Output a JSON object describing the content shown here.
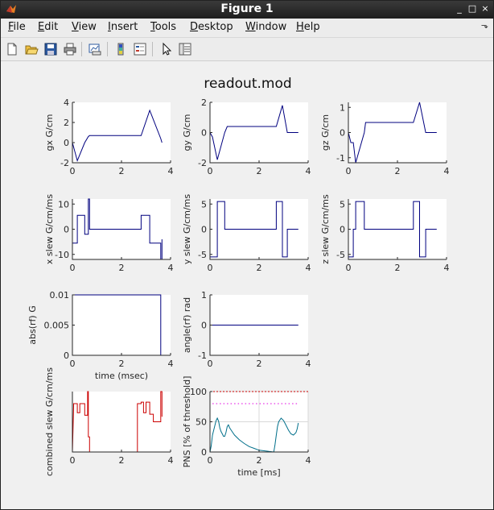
{
  "window": {
    "title": "Figure 1",
    "controls": [
      "_",
      "□",
      "×"
    ]
  },
  "menu": {
    "items": [
      {
        "key": "F",
        "rest": "ile"
      },
      {
        "key": "E",
        "rest": "dit"
      },
      {
        "key": "V",
        "rest": "iew"
      },
      {
        "key": "I",
        "rest": "nsert"
      },
      {
        "key": "T",
        "rest": "ools"
      },
      {
        "key": "D",
        "rest": "esktop"
      },
      {
        "key": "W",
        "rest": "indow"
      },
      {
        "key": "H",
        "rest": "elp"
      }
    ],
    "dock_icon": "dock-arrow-icon"
  },
  "toolbar": {
    "icons": [
      "new-figure-icon",
      "open-file-icon",
      "save-icon",
      "print-icon",
      "link-plot-icon",
      "colorbar-icon",
      "legend-icon",
      "select-arrow-icon",
      "property-inspector-icon"
    ]
  },
  "figure": {
    "title": "readout.mod",
    "colors": {
      "trace": "#00007f",
      "rf": "#00007f",
      "combined": "#cc0000",
      "pns": "#006f8a",
      "threshold": "#e000e0"
    }
  },
  "chart_data": [
    {
      "id": "gx",
      "type": "line",
      "ylabel": "gx G/cm",
      "xlim": [
        0,
        4
      ],
      "ylim": [
        -2,
        4
      ],
      "xticks": [
        "0",
        "2",
        "4"
      ],
      "yticks": [
        "-2",
        "0",
        "2",
        "4"
      ],
      "grid": false,
      "series": [
        {
          "x": [
            0,
            0.2,
            0.5,
            0.65,
            0.7,
            2.8,
            3.15,
            3.6,
            3.65
          ],
          "y": [
            0,
            -1.8,
            0,
            0.6,
            0.7,
            0.7,
            3.2,
            0.4,
            0
          ]
        }
      ]
    },
    {
      "id": "gy",
      "type": "line",
      "ylabel": "gy G/cm",
      "xlim": [
        0,
        4
      ],
      "ylim": [
        -2,
        2
      ],
      "xticks": [
        "0",
        "2",
        "4"
      ],
      "yticks": [
        "-2",
        "0",
        "2"
      ],
      "grid": false,
      "series": [
        {
          "x": [
            0,
            0.1,
            0.3,
            0.6,
            0.7,
            2.7,
            2.95,
            3.15,
            3.6
          ],
          "y": [
            0,
            -0.3,
            -1.8,
            0,
            0.4,
            0.4,
            1.8,
            0,
            0
          ]
        }
      ]
    },
    {
      "id": "gz",
      "type": "line",
      "ylabel": "gz G/cm",
      "xlim": [
        0,
        4
      ],
      "ylim": [
        -1.2,
        1.2
      ],
      "xticks": [
        "0",
        "2",
        "4"
      ],
      "yticks": [
        "-1",
        "0",
        "1"
      ],
      "grid": false,
      "series": [
        {
          "x": [
            0,
            0.1,
            0.2,
            0.3,
            0.65,
            0.7,
            2.65,
            2.9,
            3.15,
            3.6
          ],
          "y": [
            0,
            -0.4,
            -0.4,
            -1.2,
            0,
            0.4,
            0.4,
            1.2,
            0,
            0
          ]
        }
      ]
    },
    {
      "id": "xslew",
      "type": "line",
      "ylabel": "x slew  G/cm/ms",
      "xlim": [
        0,
        4
      ],
      "ylim": [
        -12,
        12
      ],
      "xticks": [
        "0",
        "2",
        "4"
      ],
      "yticks": [
        "-10",
        "0",
        "10"
      ],
      "grid": false,
      "series": [
        {
          "x": [
            0,
            0,
            0.2,
            0.2,
            0.5,
            0.5,
            0.65,
            0.65,
            0.7,
            0.7,
            2.8,
            2.8,
            3.15,
            3.15,
            3.6,
            3.6,
            3.65,
            3.65
          ],
          "y": [
            0,
            -5.5,
            -5.5,
            5.5,
            5.5,
            -2,
            -2,
            12,
            12,
            0,
            0,
            5.5,
            5.5,
            -5.5,
            -5.5,
            -12,
            -12,
            -4
          ]
        }
      ]
    },
    {
      "id": "yslew",
      "type": "line",
      "ylabel": "y slew  G/cm/ms",
      "xlim": [
        0,
        4
      ],
      "ylim": [
        -6,
        6
      ],
      "xticks": [
        "0",
        "2",
        "4"
      ],
      "yticks": [
        "-5",
        "0",
        "5"
      ],
      "grid": false,
      "series": [
        {
          "x": [
            0,
            0,
            0.3,
            0.3,
            0.6,
            0.6,
            2.7,
            2.7,
            2.95,
            2.95,
            3.15,
            3.15,
            3.6
          ],
          "y": [
            0,
            -5.5,
            -5.5,
            5.5,
            5.5,
            0,
            0,
            5.5,
            5.5,
            -5.5,
            -5.5,
            0,
            0
          ]
        }
      ]
    },
    {
      "id": "zslew",
      "type": "line",
      "ylabel": "z slew  G/cm/ms",
      "xlim": [
        0,
        4
      ],
      "ylim": [
        -6,
        6
      ],
      "xticks": [
        "0",
        "2",
        "4"
      ],
      "yticks": [
        "-5",
        "0",
        "5"
      ],
      "grid": false,
      "series": [
        {
          "x": [
            0,
            0,
            0.2,
            0.2,
            0.3,
            0.3,
            0.65,
            0.65,
            2.65,
            2.65,
            2.9,
            2.9,
            3.15,
            3.15,
            3.6
          ],
          "y": [
            0,
            -5.5,
            -5.5,
            0,
            0,
            5.5,
            5.5,
            0,
            0,
            5.5,
            5.5,
            -5.5,
            -5.5,
            0,
            0
          ]
        }
      ]
    },
    {
      "id": "absrf",
      "type": "line",
      "ylabel": "abs(rf) G",
      "xlabel": "time (msec)",
      "xlim": [
        0,
        4
      ],
      "ylim": [
        0,
        0.01
      ],
      "xticks": [
        "0",
        "2",
        "4"
      ],
      "yticks": [
        "0",
        "0.005",
        "0.01"
      ],
      "grid": false,
      "series": [
        {
          "x": [
            0,
            0,
            3.6,
            3.6
          ],
          "y": [
            0,
            0.01,
            0.01,
            0
          ]
        }
      ]
    },
    {
      "id": "anglerf",
      "type": "line",
      "ylabel": "angle(rf) rad",
      "xlim": [
        0,
        4
      ],
      "ylim": [
        -1,
        1
      ],
      "xticks": [
        "0",
        "2",
        "4"
      ],
      "yticks": [
        "-1",
        "0",
        "1"
      ],
      "grid": false,
      "series": [
        {
          "x": [
            0,
            3.6
          ],
          "y": [
            0,
            0
          ]
        }
      ]
    },
    {
      "id": "combined",
      "type": "line",
      "ylabel": "combined slew  G/cm/ms",
      "xlim": [
        0,
        4
      ],
      "ylim": [
        0,
        12
      ],
      "xticks": [
        "0",
        "2",
        "4"
      ],
      "yticks": [],
      "grid": false,
      "series": [
        {
          "x": [
            0,
            0.05,
            0.05,
            0.2,
            0.2,
            0.3,
            0.3,
            0.5,
            0.5,
            0.62,
            0.62,
            0.65,
            0.65,
            0.7,
            0.7,
            2.65,
            2.65,
            2.8,
            2.8,
            2.9,
            2.9,
            3.0,
            3.0,
            3.15,
            3.15,
            3.3,
            3.3,
            3.6,
            3.6,
            3.65,
            3.65
          ],
          "y": [
            0,
            9,
            9.6,
            9.6,
            7.8,
            7.8,
            9.6,
            9.6,
            7.3,
            7.3,
            12,
            12,
            3,
            3,
            0,
            0,
            9.6,
            9.6,
            9.9,
            9.9,
            7.8,
            7.8,
            9.9,
            9.9,
            7.5,
            7.5,
            6,
            6,
            12,
            12,
            7
          ]
        }
      ]
    },
    {
      "id": "pns",
      "type": "line",
      "ylabel": "PNS [% of threshold]",
      "xlabel": "time [ms]",
      "xlim": [
        0,
        4
      ],
      "ylim": [
        0,
        100
      ],
      "xticks": [
        "0",
        "2",
        "4"
      ],
      "yticks": [
        "0",
        "50",
        "100"
      ],
      "grid": true,
      "series": [
        {
          "name": "",
          "style": "solid",
          "x": [
            0,
            0.05,
            0.1,
            0.2,
            0.25,
            0.3,
            0.35,
            0.4,
            0.45,
            0.5,
            0.55,
            0.6,
            0.65,
            0.7,
            0.75,
            0.8,
            0.9,
            1.0,
            1.2,
            1.4,
            1.6,
            1.8,
            2.0,
            2.2,
            2.4,
            2.5,
            2.6,
            2.65,
            2.7,
            2.75,
            2.8,
            2.9,
            3.0,
            3.1,
            3.2,
            3.3,
            3.4,
            3.5,
            3.55,
            3.6
          ],
          "y": [
            0,
            10,
            28,
            44,
            52,
            56,
            51,
            40,
            34,
            30,
            26,
            26,
            32,
            42,
            45,
            40,
            34,
            28,
            20,
            14,
            9,
            6,
            3,
            2,
            1,
            0.5,
            0,
            12,
            28,
            42,
            50,
            56,
            52,
            44,
            36,
            30,
            28,
            32,
            38,
            48
          ]
        },
        {
          "name": "",
          "style": "dotted",
          "x": [
            0.1,
            3.6
          ],
          "y": [
            80,
            80
          ]
        },
        {
          "name": "",
          "style": "dashed",
          "x": [
            0,
            4
          ],
          "y": [
            100,
            100
          ]
        }
      ]
    }
  ]
}
